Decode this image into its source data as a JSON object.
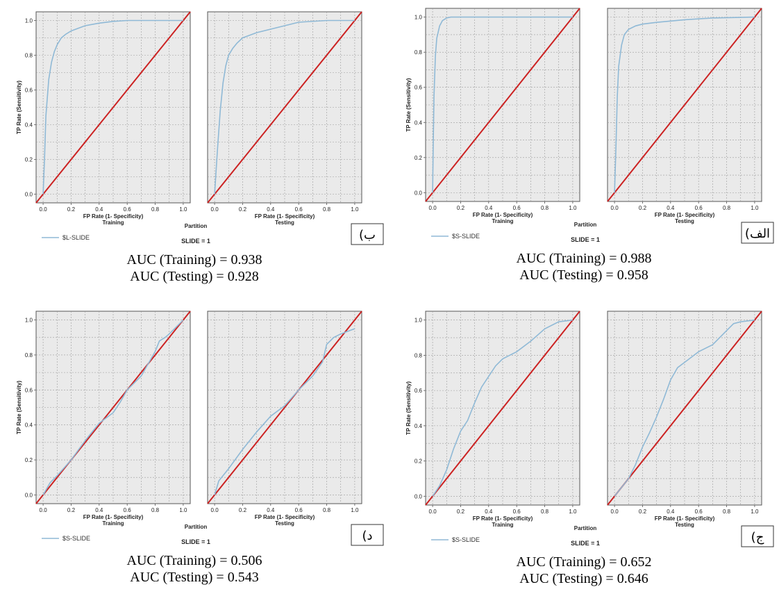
{
  "common": {
    "ylabel": "TP Rate (Sensitivity)",
    "xlabel": "FP Rate (1- Specificity)",
    "ticks": [
      "0.0",
      "0.2",
      "0.4",
      "0.6",
      "0.8",
      "1.0"
    ],
    "partition_label": "Partition",
    "slide_label": "SLIDE = 1",
    "colors": {
      "roc": "#8fb9d6",
      "diagonal": "#cc2222",
      "plot_bg": "#eaeaea"
    }
  },
  "chart_data": [
    {
      "type": "line",
      "panel_tag": "ب)",
      "legend": "$L-SLIDE",
      "auc_training": "AUC (Training) = 0.938",
      "auc_testing": "AUC (Testing) = 0.928",
      "xlim": [
        0,
        1
      ],
      "ylim": [
        0,
        1
      ],
      "subplots": [
        {
          "name": "Training",
          "x": [
            0,
            0.01,
            0.02,
            0.04,
            0.06,
            0.08,
            0.1,
            0.13,
            0.16,
            0.2,
            0.3,
            0.4,
            0.5,
            0.6,
            1.0
          ],
          "y": [
            0,
            0.2,
            0.45,
            0.66,
            0.76,
            0.82,
            0.86,
            0.9,
            0.92,
            0.94,
            0.97,
            0.985,
            0.995,
            1.0,
            1.0
          ]
        },
        {
          "name": "Testing",
          "x": [
            0,
            0.02,
            0.04,
            0.06,
            0.08,
            0.1,
            0.13,
            0.16,
            0.2,
            0.3,
            0.4,
            0.5,
            0.6,
            0.8,
            1.0
          ],
          "y": [
            0,
            0.25,
            0.48,
            0.64,
            0.74,
            0.8,
            0.84,
            0.87,
            0.9,
            0.93,
            0.95,
            0.97,
            0.99,
            1.0,
            1.0
          ]
        }
      ]
    },
    {
      "type": "line",
      "panel_tag": "الف)",
      "legend": "$S-SLIDE",
      "auc_training": "AUC (Training) = 0.988",
      "auc_testing": "AUC (Testing) = 0.958",
      "xlim": [
        0,
        1
      ],
      "ylim": [
        0,
        1
      ],
      "subplots": [
        {
          "name": "Training",
          "x": [
            0,
            0.005,
            0.01,
            0.02,
            0.03,
            0.05,
            0.07,
            0.1,
            0.13,
            1.0
          ],
          "y": [
            0,
            0.3,
            0.55,
            0.78,
            0.88,
            0.95,
            0.98,
            0.995,
            1.0,
            1.0
          ]
        },
        {
          "name": "Testing",
          "x": [
            0,
            0.01,
            0.02,
            0.03,
            0.05,
            0.07,
            0.1,
            0.15,
            0.2,
            0.3,
            0.5,
            0.7,
            1.0
          ],
          "y": [
            0,
            0.25,
            0.55,
            0.72,
            0.84,
            0.9,
            0.93,
            0.95,
            0.96,
            0.97,
            0.985,
            0.995,
            1.0
          ]
        }
      ]
    },
    {
      "type": "line",
      "panel_tag": "د)",
      "legend": "$S-SLIDE",
      "auc_training": "AUC (Training) = 0.506",
      "auc_testing": "AUC (Testing) = 0.543",
      "xlim": [
        0,
        1
      ],
      "ylim": [
        0,
        1
      ],
      "subplots": [
        {
          "name": "Training",
          "x": [
            0,
            0.05,
            0.1,
            0.2,
            0.3,
            0.4,
            0.5,
            0.55,
            0.6,
            0.7,
            0.75,
            0.8,
            0.83,
            0.87,
            0.9,
            1.0
          ],
          "y": [
            0,
            0.07,
            0.11,
            0.2,
            0.31,
            0.41,
            0.47,
            0.53,
            0.6,
            0.68,
            0.75,
            0.82,
            0.88,
            0.9,
            0.92,
            1.0
          ]
        },
        {
          "name": "Testing",
          "x": [
            0,
            0.03,
            0.1,
            0.2,
            0.3,
            0.4,
            0.5,
            0.6,
            0.7,
            0.77,
            0.8,
            0.85,
            0.9,
            1.0
          ],
          "y": [
            0,
            0.08,
            0.15,
            0.26,
            0.36,
            0.45,
            0.51,
            0.6,
            0.68,
            0.76,
            0.86,
            0.9,
            0.92,
            0.95
          ]
        }
      ]
    },
    {
      "type": "line",
      "panel_tag": "ج)",
      "legend": "$S-SLIDE",
      "auc_training": "AUC (Training) = 0.652",
      "auc_testing": "AUC (Testing) = 0.646",
      "xlim": [
        0,
        1
      ],
      "ylim": [
        0,
        1
      ],
      "subplots": [
        {
          "name": "Training",
          "x": [
            0,
            0.05,
            0.1,
            0.15,
            0.2,
            0.25,
            0.3,
            0.35,
            0.4,
            0.45,
            0.5,
            0.6,
            0.7,
            0.8,
            0.9,
            1.0
          ],
          "y": [
            0,
            0.06,
            0.15,
            0.27,
            0.37,
            0.43,
            0.53,
            0.62,
            0.68,
            0.74,
            0.78,
            0.82,
            0.88,
            0.95,
            0.99,
            1.0
          ]
        },
        {
          "name": "Testing",
          "x": [
            0,
            0.05,
            0.1,
            0.15,
            0.2,
            0.25,
            0.3,
            0.35,
            0.4,
            0.45,
            0.5,
            0.6,
            0.7,
            0.8,
            0.85,
            0.9,
            1.0
          ],
          "y": [
            0,
            0.05,
            0.1,
            0.18,
            0.28,
            0.36,
            0.45,
            0.55,
            0.66,
            0.73,
            0.76,
            0.82,
            0.86,
            0.94,
            0.98,
            0.99,
            1.0
          ]
        }
      ]
    }
  ]
}
